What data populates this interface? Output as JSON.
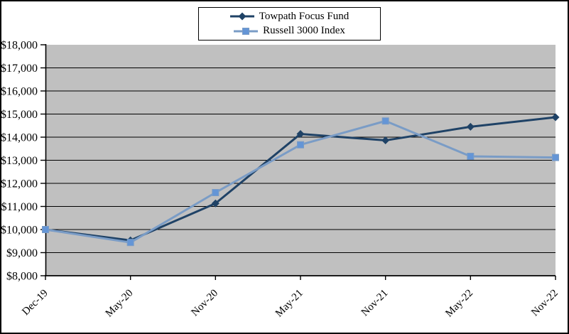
{
  "figure": {
    "background": "#FFFFFF",
    "border_color": "#000000",
    "plot_background": "#C0C0C0",
    "gridline_color": "#000000",
    "axis_color": "#000000"
  },
  "chart_data": {
    "type": "line",
    "title": "",
    "xlabel": "",
    "ylabel": "",
    "categories": [
      "Dec-19",
      "May-20",
      "Nov-20",
      "May-21",
      "Nov-21",
      "May-22",
      "Nov-22"
    ],
    "series": [
      {
        "name": "Towpath Focus Fund",
        "marker": "diamond",
        "color": "#1F4266",
        "marker_color": "#1F4266",
        "values": [
          10000,
          9530,
          11130,
          14140,
          13860,
          14450,
          14860
        ]
      },
      {
        "name": "Russell 3000 Index",
        "marker": "square",
        "color": "#7A9CC6",
        "marker_color": "#6495D6",
        "values": [
          10000,
          9440,
          11600,
          13670,
          14700,
          13170,
          13120
        ]
      }
    ],
    "ylim": [
      8000,
      18000
    ],
    "ytick_step": 1000,
    "ytick_labels": [
      "$8,000",
      "$9,000",
      "$10,000",
      "$11,000",
      "$12,000",
      "$13,000",
      "$14,000",
      "$15,000",
      "$16,000",
      "$17,000",
      "$18,000"
    ],
    "grid": "horizontal",
    "legend_position": "top-center",
    "x_label_rotation_deg": -45
  }
}
